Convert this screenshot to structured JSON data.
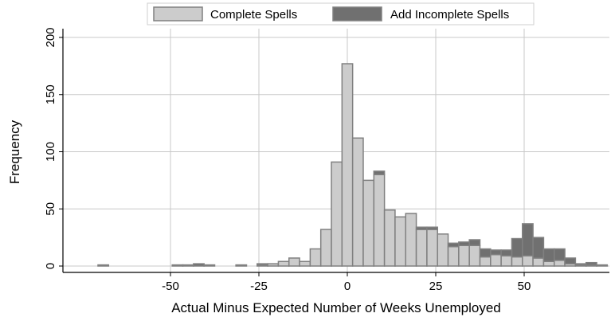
{
  "chart_data": {
    "type": "bar",
    "subtype": "stacked-histogram",
    "title": "",
    "xlabel": "Actual Minus Expected Number of Weeks Unemployed",
    "ylabel": "Frequency",
    "xlim": [
      -77,
      77
    ],
    "ylim": [
      0,
      205
    ],
    "x_ticks": [
      -50,
      -25,
      0,
      25,
      50
    ],
    "y_ticks": [
      0,
      50,
      100,
      150,
      200
    ],
    "grid": true,
    "legend_position": "top",
    "bin_width": 3,
    "colors": {
      "complete": "#cccccc",
      "incomplete": "#707070",
      "bar_edge": "#808080",
      "grid": "#c8c8c8",
      "axis": "#000000"
    },
    "series": [
      {
        "name": "Complete Spells",
        "key": "complete"
      },
      {
        "name": "Add Incomplete Spells",
        "key": "incomplete"
      }
    ],
    "bins": [
      {
        "x": -69,
        "complete": 0,
        "incomplete": 1
      },
      {
        "x": -48,
        "complete": 0,
        "incomplete": 1
      },
      {
        "x": -45,
        "complete": 0,
        "incomplete": 1
      },
      {
        "x": -42,
        "complete": 0,
        "incomplete": 2
      },
      {
        "x": -39,
        "complete": 0,
        "incomplete": 1
      },
      {
        "x": -30,
        "complete": 0,
        "incomplete": 1
      },
      {
        "x": -24,
        "complete": 1,
        "incomplete": 1
      },
      {
        "x": -21,
        "complete": 2,
        "incomplete": 0
      },
      {
        "x": -18,
        "complete": 4,
        "incomplete": 0
      },
      {
        "x": -15,
        "complete": 7,
        "incomplete": 0
      },
      {
        "x": -12,
        "complete": 4,
        "incomplete": 0
      },
      {
        "x": -9,
        "complete": 15,
        "incomplete": 0
      },
      {
        "x": -6,
        "complete": 32,
        "incomplete": 0
      },
      {
        "x": -3,
        "complete": 91,
        "incomplete": 0
      },
      {
        "x": 0,
        "complete": 177,
        "incomplete": 0
      },
      {
        "x": 3,
        "complete": 112,
        "incomplete": 0
      },
      {
        "x": 6,
        "complete": 75,
        "incomplete": 0
      },
      {
        "x": 9,
        "complete": 80,
        "incomplete": 3
      },
      {
        "x": 12,
        "complete": 49,
        "incomplete": 0
      },
      {
        "x": 15,
        "complete": 43,
        "incomplete": 0
      },
      {
        "x": 18,
        "complete": 46,
        "incomplete": 0
      },
      {
        "x": 21,
        "complete": 32,
        "incomplete": 2
      },
      {
        "x": 24,
        "complete": 32,
        "incomplete": 2
      },
      {
        "x": 27,
        "complete": 28,
        "incomplete": 0
      },
      {
        "x": 30,
        "complete": 17,
        "incomplete": 3
      },
      {
        "x": 33,
        "complete": 18,
        "incomplete": 3
      },
      {
        "x": 36,
        "complete": 18,
        "incomplete": 5
      },
      {
        "x": 39,
        "complete": 8,
        "incomplete": 7
      },
      {
        "x": 42,
        "complete": 10,
        "incomplete": 4
      },
      {
        "x": 45,
        "complete": 9,
        "incomplete": 5
      },
      {
        "x": 48,
        "complete": 8,
        "incomplete": 16
      },
      {
        "x": 51,
        "complete": 9,
        "incomplete": 28
      },
      {
        "x": 54,
        "complete": 7,
        "incomplete": 18
      },
      {
        "x": 57,
        "complete": 4,
        "incomplete": 11
      },
      {
        "x": 60,
        "complete": 5,
        "incomplete": 10
      },
      {
        "x": 63,
        "complete": 2,
        "incomplete": 5
      },
      {
        "x": 66,
        "complete": 1,
        "incomplete": 1
      },
      {
        "x": 69,
        "complete": 1,
        "incomplete": 2
      },
      {
        "x": 72,
        "complete": 0,
        "incomplete": 1
      }
    ]
  }
}
